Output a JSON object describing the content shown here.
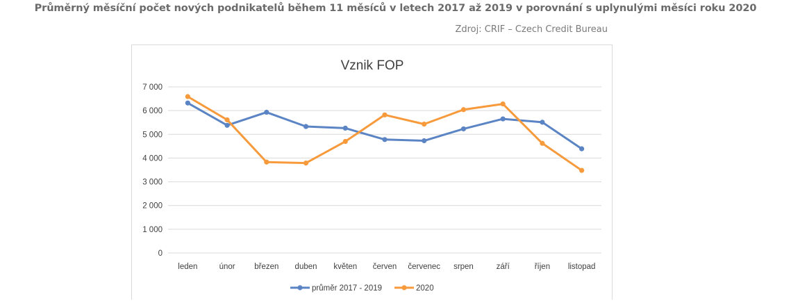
{
  "page": {
    "heading": "Průměrný měsíční počet nových podnikatelů během 11 měsíců v letech 2017 až 2019 v porovnání s uplynulými měsíci roku 2020",
    "source": "Zdroj: CRIF – Czech Credit Bureau"
  },
  "chart_data": {
    "type": "line",
    "title": "Vznik FOP",
    "xlabel": "",
    "ylabel": "",
    "categories": [
      "leden",
      "únor",
      "březen",
      "duben",
      "květen",
      "červen",
      "červenec",
      "srpen",
      "září",
      "říjen",
      "listopad"
    ],
    "ylim": [
      0,
      7000
    ],
    "yticks": [
      0,
      1000,
      2000,
      3000,
      4000,
      5000,
      6000,
      7000
    ],
    "ytick_labels": [
      "0",
      "1 000",
      "2 000",
      "3 000",
      "4 000",
      "5 000",
      "6 000",
      "7 000"
    ],
    "grid": true,
    "legend_position": "bottom",
    "series": [
      {
        "name": "průměr 2017 - 2019",
        "color": "#5b84c4",
        "values": [
          6320,
          5380,
          5930,
          5330,
          5260,
          4780,
          4730,
          5230,
          5650,
          5510,
          4390
        ]
      },
      {
        "name": "2020",
        "color": "#f79a3c",
        "values": [
          6590,
          5610,
          3830,
          3790,
          4700,
          5820,
          5430,
          6040,
          6280,
          4620,
          3480
        ]
      }
    ]
  }
}
